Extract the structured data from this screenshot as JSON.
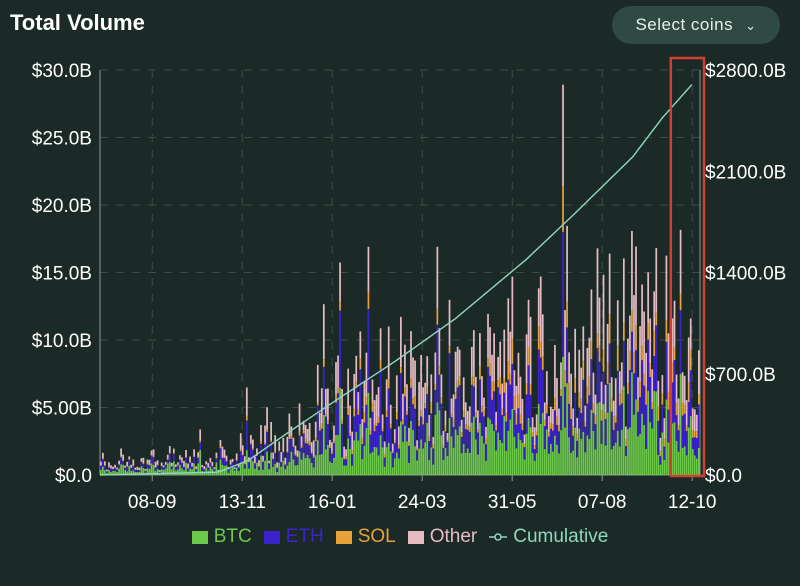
{
  "header": {
    "title": "Total Volume",
    "select_label": "Select coins",
    "select_icon": "chevron-down-icon"
  },
  "colors": {
    "background": "#1b2a26",
    "btc": "#6cc94a",
    "eth": "#3a23c9",
    "sol": "#e8a23a",
    "other": "#e6bcc4",
    "cumulative": "#8ed8c0",
    "highlight_box": "#d0402c",
    "grid": "#3c4c47"
  },
  "chart_data": {
    "type": "bar",
    "stacked": true,
    "x_tick_labels": [
      "08-09",
      "13-11",
      "16-01",
      "24-03",
      "31-05",
      "07-08",
      "12-10"
    ],
    "y_left_ticks": [
      "$0.0",
      "$5.00B",
      "$10.0B",
      "$15.0B",
      "$20.0B",
      "$25.0B",
      "$30.0B"
    ],
    "y_left_range": [
      0,
      30
    ],
    "y_left_unit": "billion USD",
    "y_right_ticks": [
      "$0.0",
      "$700.0B",
      "$1400.0B",
      "$2100.0B",
      "$2800.0B"
    ],
    "y_right_range": [
      0,
      2800
    ],
    "y_right_unit": "billion USD",
    "grid": true,
    "legend": [
      "BTC",
      "ETH",
      "SOL",
      "Other",
      "Cumulative"
    ],
    "legend_position": "bottom",
    "series": [
      {
        "name": "BTC",
        "axis": "left",
        "values": [
          0.5,
          0.5,
          0.5,
          0.5,
          0.6,
          0.6,
          0.8,
          1.0,
          1.3,
          1.5,
          1.8,
          1.9,
          2.3,
          2.6,
          3.3,
          3.0,
          3.3,
          3.8,
          3.5,
          3.5,
          4.0,
          3.3,
          2.8,
          2.5
        ]
      },
      {
        "name": "ETH",
        "axis": "left",
        "values": [
          0.3,
          0.3,
          0.3,
          0.3,
          0.3,
          0.4,
          0.7,
          1.0,
          1.3,
          1.6,
          1.8,
          1.8,
          1.8,
          2.0,
          2.5,
          2.1,
          2.2,
          2.6,
          2.6,
          2.8,
          3.0,
          2.6,
          2.3,
          2.1
        ]
      },
      {
        "name": "SOL",
        "axis": "left",
        "values": [
          0.05,
          0.05,
          0.05,
          0.05,
          0.05,
          0.05,
          0.1,
          0.1,
          0.2,
          0.3,
          0.4,
          0.4,
          0.5,
          0.5,
          0.6,
          0.7,
          0.7,
          0.9,
          1.0,
          1.0,
          1.3,
          1.1,
          0.9,
          0.8
        ]
      },
      {
        "name": "Other",
        "axis": "left",
        "values": [
          0.4,
          0.3,
          0.3,
          0.3,
          0.3,
          0.4,
          0.7,
          0.9,
          1.2,
          1.5,
          1.8,
          1.8,
          2.0,
          2.1,
          2.5,
          2.3,
          2.5,
          2.8,
          2.8,
          2.9,
          3.2,
          2.6,
          2.3,
          2.2
        ]
      },
      {
        "name": "Cumulative",
        "axis": "right",
        "type": "line",
        "x_index": [
          0,
          2,
          4,
          6,
          8,
          10,
          12,
          14,
          16,
          18,
          20,
          22,
          24,
          26,
          28,
          30,
          32,
          34,
          36,
          38,
          40,
          42,
          44,
          46,
          48,
          50,
          52,
          54,
          56,
          58,
          60,
          62,
          64,
          66,
          68,
          70,
          72,
          74,
          76,
          78,
          80,
          82,
          84,
          86,
          88,
          90,
          92,
          94,
          96,
          98,
          100,
          102,
          104,
          106,
          108,
          110,
          112,
          114,
          116,
          118,
          120,
          122,
          124,
          126,
          128,
          130,
          132,
          134,
          136,
          138,
          140,
          142,
          144,
          146,
          148,
          150,
          152,
          154,
          156,
          158,
          160,
          162,
          164,
          166,
          168,
          170,
          172,
          174,
          176,
          178,
          180,
          182,
          184,
          186,
          188,
          190,
          192,
          194,
          196,
          198,
          200,
          202,
          204,
          206,
          208,
          210,
          212,
          214,
          216,
          218,
          220,
          222,
          224,
          226,
          228,
          230,
          232,
          234,
          236,
          238,
          240,
          242,
          244,
          246,
          248,
          250,
          252,
          254,
          256,
          258,
          260,
          262,
          264,
          266,
          268,
          270,
          272,
          274,
          276,
          278,
          280,
          282,
          284,
          286,
          288,
          290,
          292,
          294,
          296,
          298,
          300,
          302,
          304,
          306,
          308,
          310,
          312,
          314,
          316,
          318,
          320,
          322,
          324,
          326,
          328,
          330,
          332,
          334,
          336,
          338,
          340,
          342,
          344,
          346,
          348,
          350,
          352,
          354,
          356,
          358,
          360,
          362,
          364,
          366,
          368,
          370,
          372,
          374,
          376,
          378,
          380,
          382,
          384,
          386,
          388,
          390,
          392,
          394,
          396,
          398,
          400,
          402,
          404,
          406,
          408,
          410,
          412,
          414,
          416,
          418,
          420,
          422,
          424,
          426,
          428,
          430,
          432,
          434,
          436,
          438,
          440,
          442,
          444,
          446,
          448,
          450,
          452,
          454,
          456,
          458,
          460,
          462,
          464,
          466,
          468,
          470,
          472,
          474,
          476,
          478,
          480,
          482,
          484,
          486,
          488,
          490,
          492,
          494,
          496,
          498,
          500,
          502,
          504,
          506,
          508,
          510,
          512,
          514,
          516,
          518,
          520,
          522,
          524,
          526,
          528,
          530,
          532,
          534,
          536,
          538,
          540,
          542,
          544,
          546,
          548,
          550,
          552,
          554,
          556,
          558,
          560,
          562,
          564,
          566,
          568,
          570,
          572,
          574,
          576,
          578,
          580,
          582,
          584,
          586,
          588,
          590
        ],
        "anchor_x_fraction": [
          0,
          0.2,
          0.25,
          0.32,
          0.4,
          0.5,
          0.6,
          0.72,
          0.8,
          0.9,
          0.95,
          1.0
        ],
        "anchor_values": [
          0,
          20,
          100,
          300,
          520,
          790,
          1080,
          1490,
          1800,
          2200,
          2470,
          2700
        ]
      }
    ],
    "highlight": {
      "x_range_fraction": [
        0.958,
        1.0
      ],
      "label": ""
    }
  },
  "legend": {
    "btc": "BTC",
    "eth": "ETH",
    "sol": "SOL",
    "other": "Other",
    "cumulative": "Cumulative"
  }
}
